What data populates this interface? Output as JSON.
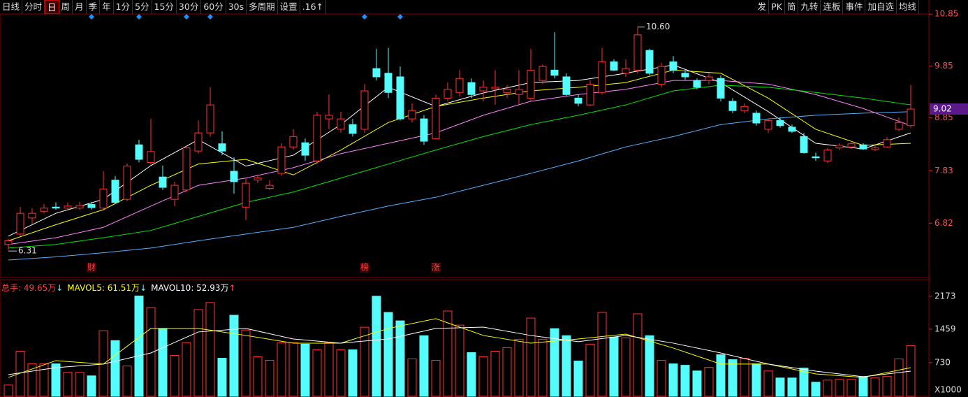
{
  "toolbar": {
    "left": [
      {
        "label": "日线"
      },
      {
        "label": "分时"
      },
      {
        "label": "日",
        "selected": true
      },
      {
        "label": "周"
      },
      {
        "label": "月"
      },
      {
        "label": "季"
      },
      {
        "label": "年"
      },
      {
        "label": "1分"
      },
      {
        "label": "5分"
      },
      {
        "label": "15分"
      },
      {
        "label": "30分"
      },
      {
        "label": "60分"
      },
      {
        "label": "30s"
      },
      {
        "label": "多周期"
      },
      {
        "label": "设置"
      },
      {
        "label": ".16↑"
      }
    ],
    "right": [
      {
        "label": "发"
      },
      {
        "label": "PK"
      },
      {
        "label": "简"
      },
      {
        "label": "九转"
      },
      {
        "label": "连板"
      },
      {
        "label": "事件"
      },
      {
        "label": "加自选"
      },
      {
        "label": "均线"
      }
    ]
  },
  "chart_data": [
    {
      "type": "candlestick",
      "up_color": "#ff3232",
      "down_color": "#54fcfc",
      "open": [
        6.41,
        6.61,
        6.92,
        7.05,
        7.13,
        7.11,
        7.11,
        7.18,
        7.11,
        7.65,
        7.28,
        8.33,
        7.99,
        7.71,
        7.28,
        7.46,
        8.21,
        8.56,
        8.35,
        7.82,
        7.13,
        7.65,
        7.49,
        7.78,
        8.29,
        8.37,
        8.02,
        8.83,
        8.63,
        8.72,
        8.63,
        9.8,
        9.71,
        9.64,
        8.83,
        8.83,
        8.45,
        9.23,
        9.34,
        9.53,
        9.37,
        9.41,
        9.34,
        9.3,
        9.23,
        9.57,
        9.77,
        9.64,
        9.23,
        9.1,
        9.34,
        9.93,
        9.71,
        9.77,
        10.15,
        9.5,
        9.93,
        9.71,
        9.57,
        9.57,
        9.61,
        9.17,
        8.99,
        8.94,
        8.63,
        8.8,
        8.67,
        8.49,
        8.1,
        8.02,
        8.27,
        8.29,
        8.33,
        8.24,
        8.29,
        8.63,
        8.7
      ],
      "high": [
        6.52,
        7.13,
        7.11,
        7.19,
        7.22,
        7.22,
        7.23,
        7.23,
        7.82,
        7.73,
        7.97,
        8.43,
        8.83,
        7.93,
        7.62,
        8.32,
        8.8,
        9.44,
        8.59,
        8.09,
        7.69,
        7.75,
        7.65,
        8.36,
        8.63,
        8.45,
        8.97,
        9.3,
        8.97,
        8.83,
        9.5,
        10.18,
        10.2,
        9.84,
        9.13,
        8.9,
        9.3,
        9.53,
        9.77,
        9.61,
        9.57,
        9.77,
        9.48,
        9.77,
        10.18,
        9.88,
        10.5,
        9.71,
        9.3,
        9.57,
        10.2,
        9.98,
        9.98,
        10.6,
        10.18,
        9.91,
        10.04,
        9.77,
        9.61,
        9.71,
        9.67,
        9.23,
        9.13,
        8.99,
        8.83,
        8.86,
        8.72,
        8.56,
        8.18,
        8.27,
        8.36,
        8.4,
        8.36,
        8.32,
        8.48,
        8.86,
        9.48
      ],
      "low": [
        6.31,
        6.57,
        6.81,
        7.01,
        7.08,
        7.08,
        7.08,
        7.08,
        7.08,
        7.19,
        7.24,
        7.99,
        7.94,
        7.46,
        7.15,
        7.42,
        8.16,
        8.49,
        8.13,
        7.39,
        6.88,
        7.59,
        7.46,
        7.73,
        8.23,
        8.02,
        7.96,
        8.63,
        8.56,
        8.49,
        8.56,
        9.57,
        9.23,
        8.8,
        8.76,
        8.33,
        8.43,
        9.17,
        9.26,
        9.23,
        9.17,
        9.1,
        9.23,
        9.1,
        9.17,
        9.5,
        9.61,
        9.26,
        9.07,
        9.07,
        9.3,
        9.75,
        9.64,
        9.71,
        9.67,
        9.44,
        9.71,
        9.58,
        9.4,
        9.5,
        9.17,
        8.94,
        8.94,
        8.7,
        8.56,
        8.66,
        8.56,
        8.16,
        8.02,
        7.98,
        8.23,
        8.25,
        8.23,
        8.21,
        8.27,
        8.59,
        8.66
      ],
      "close": [
        6.48,
        7.01,
        7.01,
        7.11,
        7.11,
        7.15,
        7.16,
        7.12,
        7.48,
        7.22,
        7.92,
        8.05,
        8.2,
        7.51,
        7.55,
        8.27,
        8.56,
        9.1,
        8.21,
        7.62,
        7.59,
        7.69,
        7.55,
        8.29,
        8.49,
        8.13,
        8.9,
        8.9,
        8.83,
        8.55,
        9.37,
        9.64,
        9.34,
        8.83,
        8.99,
        8.4,
        9.23,
        9.4,
        9.61,
        9.3,
        9.44,
        9.44,
        9.4,
        9.4,
        9.77,
        9.84,
        9.67,
        9.3,
        9.13,
        9.5,
        9.93,
        9.77,
        9.8,
        10.45,
        9.71,
        9.84,
        9.77,
        9.64,
        9.44,
        9.64,
        9.23,
        8.99,
        9.07,
        8.75,
        8.8,
        8.7,
        8.59,
        8.18,
        8.08,
        8.23,
        8.32,
        8.35,
        8.25,
        8.27,
        8.43,
        8.76,
        9.02
      ],
      "max_label": "10.60",
      "series": [
        {
          "color": "#ffffff",
          "x": [
            0,
            4,
            8,
            12,
            16,
            20,
            24,
            28,
            32,
            36,
            40,
            44,
            48,
            52,
            56,
            60,
            64,
            68,
            72,
            76
          ],
          "values": [
            6.57,
            7.01,
            7.28,
            7.93,
            8.43,
            7.92,
            8.13,
            8.72,
            9.44,
            9.07,
            9.33,
            9.53,
            9.57,
            9.71,
            9.87,
            9.53,
            8.97,
            8.36,
            8.25,
            8.56
          ]
        },
        {
          "color": "#ffff00",
          "x": [
            0,
            4,
            8,
            12,
            16,
            20,
            24,
            28,
            32,
            36,
            40,
            44,
            48,
            52,
            56,
            60,
            64,
            68,
            72,
            76
          ],
          "values": [
            6.48,
            6.79,
            7.08,
            7.55,
            7.96,
            8.05,
            7.75,
            8.23,
            8.76,
            9.07,
            9.23,
            9.37,
            9.44,
            9.53,
            9.77,
            9.71,
            9.23,
            8.63,
            8.32,
            8.36
          ]
        },
        {
          "color": "#ff80ff",
          "x": [
            0,
            4,
            8,
            12,
            16,
            20,
            24,
            28,
            32,
            36,
            40,
            44,
            48,
            52,
            56,
            60,
            64,
            68,
            72,
            76
          ],
          "values": [
            6.41,
            6.54,
            6.74,
            7.15,
            7.55,
            7.69,
            7.89,
            8.16,
            8.36,
            8.56,
            8.9,
            9.17,
            9.3,
            9.4,
            9.57,
            9.57,
            9.5,
            9.3,
            9.03,
            8.7
          ]
        },
        {
          "color": "#00e600",
          "x": [
            0,
            4,
            8,
            12,
            16,
            20,
            24,
            28,
            32,
            36,
            40,
            44,
            48,
            52,
            56,
            60,
            64,
            68,
            72,
            76
          ],
          "values": [
            6.34,
            6.41,
            6.54,
            6.68,
            6.95,
            7.22,
            7.42,
            7.69,
            7.96,
            8.23,
            8.49,
            8.72,
            8.9,
            9.1,
            9.37,
            9.48,
            9.44,
            9.34,
            9.23,
            9.1
          ]
        },
        {
          "color": "#4fb0ff",
          "x": [
            0,
            4,
            8,
            12,
            16,
            20,
            24,
            28,
            32,
            36,
            40,
            44,
            48,
            52,
            56,
            60,
            64,
            68,
            72,
            76
          ],
          "values": [
            6.11,
            6.17,
            6.25,
            6.34,
            6.48,
            6.61,
            6.74,
            6.95,
            7.15,
            7.32,
            7.55,
            7.78,
            8.02,
            8.29,
            8.49,
            8.72,
            8.83,
            8.9,
            8.94,
            8.97
          ]
        }
      ],
      "events": [
        {
          "x": 7,
          "label": "财"
        },
        {
          "x": 30,
          "label": "榜"
        },
        {
          "x": 36,
          "label": "涨"
        }
      ],
      "ylim": [
        5.8,
        10.96
      ],
      "yticks": [
        6.82,
        7.83,
        8.85,
        9.85,
        10.85
      ]
    },
    {
      "type": "bar",
      "values": [
        245,
        980,
        705,
        705,
        705,
        520,
        520,
        444,
        1424,
        1210,
        658,
        2180,
        1930,
        1470,
        888,
        1164,
        1884,
        2037,
        827,
        1761,
        1440,
        858,
        781,
        1164,
        1164,
        1133,
        1011,
        1164,
        1011,
        1011,
        1501,
        2175,
        1822,
        1639,
        812,
        1317,
        781,
        1853,
        1547,
        949,
        858,
        980,
        1057,
        1240,
        1700,
        1240,
        1470,
        1317,
        766,
        1133,
        1822,
        1286,
        1271,
        1792,
        1317,
        781,
        705,
        674,
        551,
        628,
        903,
        796,
        827,
        705,
        551,
        398,
        398,
        612,
        306,
        352,
        368,
        368,
        429,
        398,
        429,
        812,
        1103
      ],
      "series": [
        {
          "color": "#ffff00",
          "x": [
            0,
            4,
            8,
            12,
            16,
            20,
            24,
            28,
            32,
            36,
            40,
            44,
            48,
            52,
            56,
            60,
            64,
            68,
            72,
            76
          ],
          "values": [
            411,
            775,
            700,
            1474,
            1474,
            1322,
            1155,
            1155,
            1474,
            1687,
            1322,
            1155,
            1246,
            1352,
            1049,
            700,
            700,
            486,
            410,
            623
          ]
        },
        {
          "color": "#ffffff",
          "x": [
            0,
            4,
            8,
            12,
            16,
            20,
            24,
            28,
            32,
            36,
            40,
            44,
            48,
            52,
            56,
            60,
            64,
            68,
            72,
            76
          ],
          "values": [
            471,
            623,
            700,
            942,
            1398,
            1474,
            1246,
            1155,
            1246,
            1474,
            1504,
            1322,
            1186,
            1322,
            1155,
            942,
            700,
            547,
            425,
            547
          ]
        }
      ],
      "legend": [
        {
          "text": "总手: 49.65万",
          "color": "#ff4040",
          "arrow": "↓",
          "arrow_color": "#54fcfc"
        },
        {
          "text": "MAVOL5: 61.51万",
          "color": "#ffff00",
          "arrow": "↓",
          "arrow_color": "#54fcfc"
        },
        {
          "text": "MAVOL10: 52.93万",
          "color": "#ffffff",
          "arrow": "↑",
          "arrow_color": "#ff4040"
        }
      ],
      "unit_label": "X1000",
      "ylim": [
        0,
        2460
      ],
      "yticks": [
        730,
        1459,
        2173
      ]
    }
  ]
}
